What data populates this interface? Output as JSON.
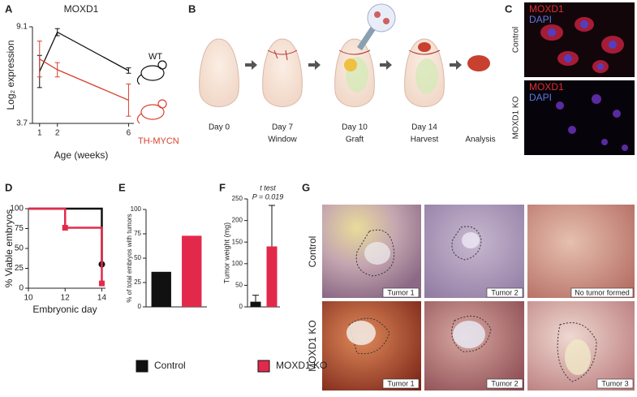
{
  "panels": [
    "A",
    "B",
    "C",
    "D",
    "E",
    "F",
    "G"
  ],
  "chart_data": [
    {
      "type": "line",
      "title": "MOXD1",
      "y_label": "Log₂ expression",
      "x_label": "Age (weeks)",
      "xlim": [
        0.6,
        6.3
      ],
      "xticks": [
        1,
        2,
        6
      ],
      "ylim": [
        3.7,
        9.1
      ],
      "yticks": [
        3.7,
        9.1
      ],
      "series": [
        {
          "name": "WT",
          "color": "#111111",
          "x": [
            1,
            2,
            6
          ],
          "values": [
            6.6,
            8.8,
            6.65
          ],
          "errors": [
            0.9,
            0.2,
            0.15
          ]
        },
        {
          "name": "TH-MYCN",
          "color": "#d9412f",
          "x": [
            1,
            2,
            6
          ],
          "values": [
            7.3,
            6.7,
            5.0
          ],
          "errors": [
            1.0,
            0.4,
            0.9
          ]
        }
      ]
    },
    {
      "type": "step",
      "y_label": "% Viable embryos",
      "x_label": "Embryonic day",
      "xlim": [
        10,
        14.2
      ],
      "xticks": [
        10,
        12,
        14
      ],
      "ylim": [
        0,
        100
      ],
      "yticks": [
        0,
        25,
        50,
        75,
        100
      ],
      "series": [
        {
          "name": "Control",
          "color": "#111111",
          "marker": "circle",
          "x": [
            10,
            14
          ],
          "values": [
            100,
            30
          ]
        },
        {
          "name": "MOXD1 KO",
          "color": "#e3294b",
          "marker": "square",
          "x": [
            10,
            12,
            14
          ],
          "values": [
            100,
            76,
            6
          ]
        }
      ]
    },
    {
      "type": "bar",
      "y_label": "% of total embryos with tumors",
      "ylim": [
        0,
        100
      ],
      "yticks": [
        0,
        25,
        50,
        75,
        100
      ],
      "categories": [
        null,
        null
      ],
      "values": [
        36,
        73
      ],
      "colors": [
        "#111111",
        "#e3294b"
      ]
    },
    {
      "type": "bar",
      "y_label": "Tumor weight (mg)",
      "annotations": [
        "t test",
        "P = 0.019"
      ],
      "ylim": [
        0,
        250
      ],
      "yticks": [
        0,
        50,
        100,
        150,
        200,
        250
      ],
      "categories": [
        null,
        null
      ],
      "values": [
        12,
        140
      ],
      "errors": [
        15,
        95
      ],
      "colors": [
        "#111111",
        "#e3294b"
      ]
    }
  ],
  "diagram": {
    "steps": [
      {
        "day": "Day 0"
      },
      {
        "day": "Day 7",
        "label": "Window"
      },
      {
        "day": "Day 10",
        "label": "Graft"
      },
      {
        "day": "Day 14",
        "label": "Harvest"
      }
    ],
    "final": "Analysis"
  },
  "micrographs": {
    "rows": [
      {
        "label": "Control",
        "stains": [
          "MOXD1",
          "DAPI"
        ]
      },
      {
        "label": "MOXD1 KO",
        "stains": [
          "MOXD1",
          "DAPI"
        ]
      }
    ]
  },
  "photos": {
    "rows": [
      {
        "label": "Control",
        "tiles": [
          "Tumor 1",
          "Tumor 2",
          "No tumor formed"
        ]
      },
      {
        "label": "MOXD1 KO",
        "tiles": [
          "Tumor 1",
          "Tumor 2",
          "Tumor 3"
        ]
      }
    ]
  }
}
